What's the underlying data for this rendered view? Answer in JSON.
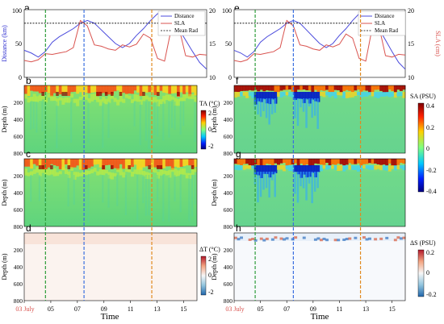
{
  "chart_data": [
    {
      "panel": "a",
      "type": "line",
      "xlabel": "Time",
      "x_ticks": [
        "03 July",
        "05",
        "07",
        "09",
        "11",
        "13",
        "15"
      ],
      "ylabel": "Distance (km)",
      "ylim": [
        0,
        100
      ],
      "y_ticks": [
        "0",
        "50",
        "100"
      ],
      "ylabel_right": "SLA (cm)",
      "ylim_right": [
        10,
        20
      ],
      "y_ticks_right": [
        "10",
        "15",
        "20"
      ],
      "legend": [
        "Distance",
        "SLA",
        "Mean Rad"
      ],
      "legend_position": "top-right",
      "series": [
        {
          "name": "Distance",
          "color": "#4b4bdc",
          "x": [
            3,
            3.5,
            4,
            4.5,
            5,
            5.5,
            6,
            6.5,
            7,
            7.5,
            8,
            8.5,
            9,
            9.5,
            10,
            10.5,
            11,
            11.5,
            12,
            12.5,
            13,
            13.5,
            14,
            14.5,
            15,
            15.5,
            16
          ],
          "values": [
            40,
            36,
            30,
            38,
            52,
            60,
            66,
            72,
            80,
            84,
            80,
            70,
            60,
            50,
            44,
            50,
            62,
            72,
            84,
            94,
            95,
            85,
            72,
            55,
            38,
            22,
            12
          ]
        },
        {
          "name": "SLA",
          "color": "#d9534f",
          "x": [
            3,
            3.5,
            4,
            4.5,
            5,
            5.5,
            6,
            6.5,
            7,
            7.5,
            8,
            8.5,
            9,
            9.5,
            10,
            10.5,
            11,
            11.5,
            12,
            12.5,
            13,
            13.5,
            14,
            14.5,
            15,
            15.5,
            16
          ],
          "values": [
            12.5,
            12.3,
            12.6,
            13.5,
            13.4,
            13.6,
            13.8,
            14.4,
            18.4,
            17.6,
            14.8,
            14.6,
            14.2,
            14.0,
            14.8,
            14.5,
            14.9,
            16.4,
            15.8,
            12.8,
            12.4,
            17.4,
            17.6,
            13.2,
            13.0,
            13.4,
            13.3
          ]
        },
        {
          "name": "Mean Rad",
          "color": "#000000",
          "x": [
            3,
            16
          ],
          "values": [
            80,
            80
          ]
        }
      ]
    },
    {
      "panel": "b",
      "type": "heatmap",
      "ylabel": "Depth (m)",
      "y_ticks": [
        "200",
        "400",
        "600",
        "800"
      ],
      "colorbar_label": "TA (°C)",
      "colorbar_ticks": [
        "2",
        "0",
        "-2"
      ],
      "colormap": "jet"
    },
    {
      "panel": "c",
      "type": "heatmap",
      "ylabel": "Depth (m)",
      "y_ticks": [
        "200",
        "400",
        "600",
        "800"
      ],
      "colormap": "jet"
    },
    {
      "panel": "d",
      "type": "heatmap",
      "ylabel": "Depth (m)",
      "y_ticks": [
        "200",
        "400",
        "600",
        "800"
      ],
      "colorbar_label": "ΔT (°C)",
      "colorbar_ticks": [
        "2",
        "0",
        "-2"
      ],
      "colormap": "diverging"
    },
    {
      "panel": "e",
      "type": "line",
      "xlabel": "Time",
      "x_ticks": [
        "03 July",
        "05",
        "07",
        "09",
        "11",
        "13",
        "15"
      ],
      "ylabel_right": "SLA (cm)",
      "ylim": [
        0,
        100
      ],
      "y_ticks": [
        "0",
        "50",
        "100"
      ],
      "y_ticks_right": [
        "10",
        "15",
        "20"
      ],
      "legend": [
        "Distance",
        "SLA",
        "Mean Rad"
      ],
      "legend_position": "top-right"
    },
    {
      "panel": "f",
      "type": "heatmap",
      "ylabel": "Depth (m)",
      "y_ticks": [
        "200",
        "400",
        "600",
        "800"
      ],
      "colorbar_label": "SA (PSU)",
      "colorbar_ticks": [
        "0.4",
        "0.2",
        "0",
        "-0.2",
        "-0.4"
      ],
      "colormap": "jet"
    },
    {
      "panel": "g",
      "type": "heatmap",
      "ylabel": "Depth (m)",
      "y_ticks": [
        "200",
        "400",
        "600",
        "800"
      ],
      "colormap": "jet"
    },
    {
      "panel": "h",
      "type": "heatmap",
      "ylabel": "Depth (m)",
      "y_ticks": [
        "200",
        "400",
        "600",
        "800"
      ],
      "colorbar_label": "ΔS (PSU)",
      "colorbar_ticks": [
        "0.2",
        "0",
        "-0.2"
      ],
      "colormap": "diverging"
    }
  ],
  "vertical_markers": [
    {
      "day": 4.6,
      "color": "#2e9c3a"
    },
    {
      "day": 7.5,
      "color": "#3a6fe0"
    },
    {
      "day": 12.6,
      "color": "#e08a20"
    }
  ],
  "x_range": [
    3,
    16
  ]
}
